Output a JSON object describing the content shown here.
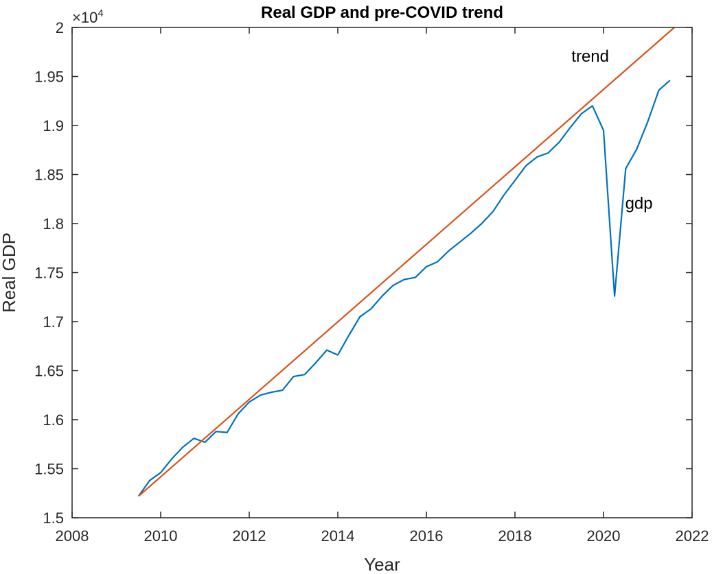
{
  "chart_data": {
    "type": "line",
    "title": "Real GDP and pre-COVID trend",
    "xlabel": "Year",
    "ylabel": "Real GDP",
    "exponent_label": "×10",
    "exponent_power": "4",
    "xlim": [
      2008,
      2022
    ],
    "ylim": [
      1.5,
      2.0
    ],
    "x_ticks": [
      2008,
      2010,
      2012,
      2014,
      2016,
      2018,
      2020,
      2022
    ],
    "y_ticks": [
      1.5,
      1.55,
      1.6,
      1.65,
      1.7,
      1.75,
      1.8,
      1.85,
      1.9,
      1.95,
      2.0
    ],
    "x_tick_labels": [
      "2008",
      "2010",
      "2012",
      "2014",
      "2016",
      "2018",
      "2020",
      "2022"
    ],
    "y_tick_labels": [
      "1.5",
      "1.55",
      "1.6",
      "1.65",
      "1.7",
      "1.75",
      "1.8",
      "1.85",
      "1.9",
      "1.95",
      "2"
    ],
    "grid": false,
    "series": [
      {
        "name": "gdp",
        "color": "#0072BD",
        "x": [
          2009.5,
          2009.75,
          2010.0,
          2010.25,
          2010.5,
          2010.75,
          2011.0,
          2011.25,
          2011.5,
          2011.75,
          2012.0,
          2012.25,
          2012.5,
          2012.75,
          2013.0,
          2013.25,
          2013.5,
          2013.75,
          2014.0,
          2014.25,
          2014.5,
          2014.75,
          2015.0,
          2015.25,
          2015.5,
          2015.75,
          2016.0,
          2016.25,
          2016.5,
          2016.75,
          2017.0,
          2017.25,
          2017.5,
          2017.75,
          2018.0,
          2018.25,
          2018.5,
          2018.75,
          2019.0,
          2019.25,
          2019.5,
          2019.75,
          2020.0,
          2020.25,
          2020.5,
          2020.75,
          2021.0,
          2021.25,
          2021.5
        ],
        "values": [
          1.522,
          1.538,
          1.546,
          1.56,
          1.572,
          1.581,
          1.577,
          1.588,
          1.587,
          1.606,
          1.618,
          1.625,
          1.628,
          1.63,
          1.644,
          1.646,
          1.658,
          1.671,
          1.666,
          1.686,
          1.705,
          1.713,
          1.726,
          1.737,
          1.743,
          1.745,
          1.756,
          1.761,
          1.772,
          1.781,
          1.79,
          1.8,
          1.812,
          1.829,
          1.844,
          1.859,
          1.868,
          1.872,
          1.883,
          1.898,
          1.912,
          1.92,
          1.895,
          1.726,
          1.856,
          1.876,
          1.904,
          1.936,
          1.946
        ]
      },
      {
        "name": "trend",
        "color": "#D95319",
        "x": [
          2009.5,
          2021.6
        ],
        "values": [
          1.522,
          2.0
        ]
      }
    ],
    "annotations": [
      {
        "text": "trend",
        "x": 2019.7,
        "y": 1.965
      },
      {
        "text": "gdp",
        "x": 2020.8,
        "y": 1.815
      }
    ]
  }
}
